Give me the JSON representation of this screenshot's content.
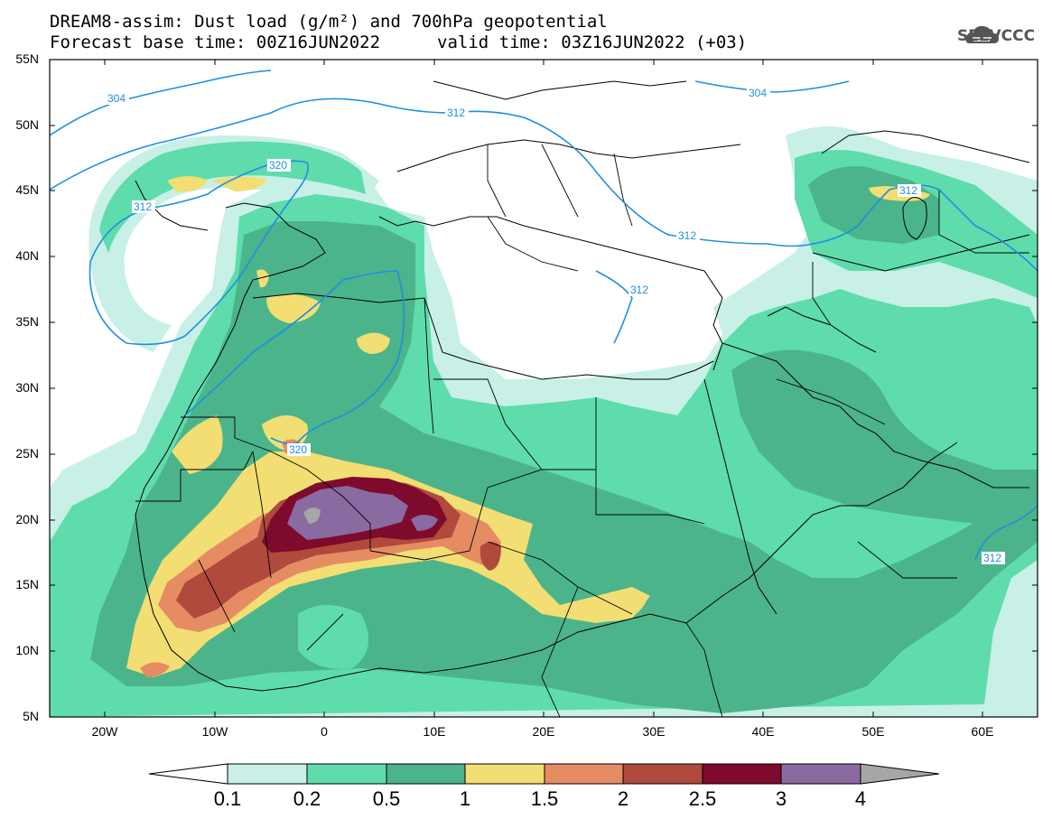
{
  "header": {
    "title_line1": "DREAM8-assim: Dust load (g/m²) and 700hPa geopotential",
    "title_line2": "Forecast base time: 00Z16JUN2022",
    "valid_time": "valid time: 03Z16JUN2022 (+03)",
    "logo": "SEEVCCC",
    "logo_icon": "cloud-icon"
  },
  "axes": {
    "lat_labels": [
      "55N",
      "50N",
      "45N",
      "40N",
      "35N",
      "30N",
      "25N",
      "20N",
      "15N",
      "10N",
      "5N"
    ],
    "lon_labels": [
      "20W",
      "10W",
      "0",
      "10E",
      "20E",
      "30E",
      "40E",
      "50E",
      "60E"
    ]
  },
  "contours": {
    "labels": [
      "304",
      "304",
      "312",
      "320",
      "312",
      "312",
      "312",
      "320",
      "312",
      "312"
    ]
  },
  "colorbar": {
    "ticks": [
      "0.1",
      "0.2",
      "0.5",
      "1",
      "1.5",
      "2",
      "2.5",
      "3",
      "4"
    ],
    "colors": [
      "#c8f0e6",
      "#5fdcac",
      "#4cb48a",
      "#f2de73",
      "#e58c63",
      "#b04a3c",
      "#7e0a2d",
      "#8a6aa0",
      "#a6a6a6"
    ]
  },
  "colors": {
    "contour_line": "#1e90e0",
    "border": "#000000",
    "frame": "#000000"
  }
}
